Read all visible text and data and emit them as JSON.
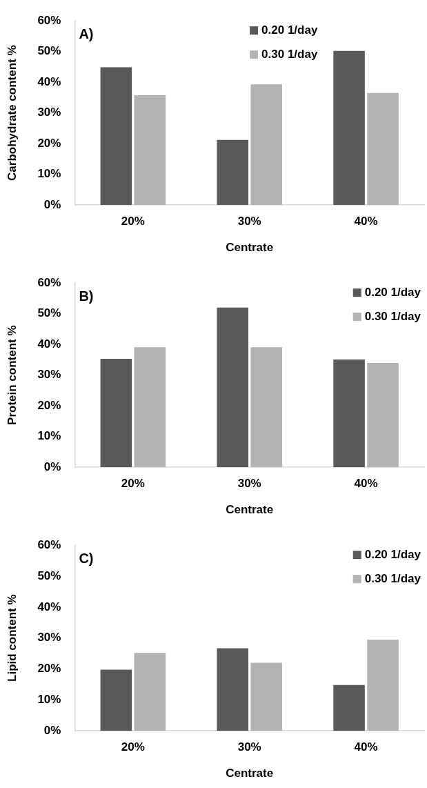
{
  "chart_data": [
    {
      "type": "bar",
      "annotations": [
        "A)"
      ],
      "xlabel": "Centrate",
      "ylabel": "Carbohydrate content %",
      "categories": [
        "20%",
        "30%",
        "40%"
      ],
      "series": [
        {
          "name": "0.20 1/day",
          "color": "#595959",
          "values": [
            44.9,
            21.2,
            50.2
          ]
        },
        {
          "name": "0.30 1/day",
          "color": "#b3b3b3",
          "values": [
            35.8,
            39.3,
            36.5
          ]
        }
      ],
      "ylim": [
        0,
        60
      ],
      "yticks": [
        {
          "value": 0,
          "label": "0%"
        },
        {
          "value": 10,
          "label": "10%"
        },
        {
          "value": 20,
          "label": "20%"
        },
        {
          "value": 30,
          "label": "30%"
        },
        {
          "value": 40,
          "label": "40%"
        },
        {
          "value": 50,
          "label": "50%"
        },
        {
          "value": 60,
          "label": "60%"
        }
      ],
      "grid": false,
      "legend": "top"
    },
    {
      "type": "bar",
      "annotations": [
        "B)"
      ],
      "xlabel": "Centrate",
      "ylabel": "Protein content %",
      "categories": [
        "20%",
        "30%",
        "40%"
      ],
      "series": [
        {
          "name": "0.20 1/day",
          "color": "#595959",
          "values": [
            35.3,
            52.0,
            35.1
          ]
        },
        {
          "name": "0.30 1/day",
          "color": "#b3b3b3",
          "values": [
            39.1,
            39.1,
            34.0
          ]
        }
      ],
      "ylim": [
        0,
        60
      ],
      "yticks": [
        {
          "value": 0,
          "label": "0%"
        },
        {
          "value": 10,
          "label": "10%"
        },
        {
          "value": 20,
          "label": "20%"
        },
        {
          "value": 30,
          "label": "30%"
        },
        {
          "value": 40,
          "label": "40%"
        },
        {
          "value": 50,
          "label": "50%"
        },
        {
          "value": 60,
          "label": "60%"
        }
      ],
      "grid": false,
      "legend": "top right"
    },
    {
      "type": "bar",
      "annotations": [
        "C)"
      ],
      "xlabel": "Centrate",
      "ylabel": "Lipid content %",
      "categories": [
        "20%",
        "30%",
        "40%"
      ],
      "series": [
        {
          "name": "0.20 1/day",
          "color": "#595959",
          "values": [
            19.8,
            26.7,
            14.8
          ]
        },
        {
          "name": "0.30 1/day",
          "color": "#b3b3b3",
          "values": [
            25.2,
            22.0,
            29.5
          ]
        }
      ],
      "ylim": [
        0,
        60
      ],
      "yticks": [
        {
          "value": 0,
          "label": "0%"
        },
        {
          "value": 10,
          "label": "10%"
        },
        {
          "value": 20,
          "label": "20%"
        },
        {
          "value": 30,
          "label": "30%"
        },
        {
          "value": 40,
          "label": "40%"
        },
        {
          "value": 50,
          "label": "50%"
        },
        {
          "value": 60,
          "label": "60%"
        }
      ],
      "grid": false,
      "legend": "top right"
    }
  ]
}
